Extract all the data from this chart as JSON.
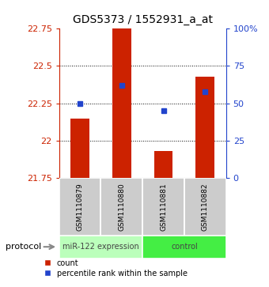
{
  "title": "GDS5373 / 1552931_a_at",
  "samples": [
    "GSM1110879",
    "GSM1110880",
    "GSM1110881",
    "GSM1110882"
  ],
  "groups": [
    "miR-122 expression",
    "miR-122 expression",
    "control",
    "control"
  ],
  "bar_bottoms": [
    21.75,
    21.75,
    21.75,
    21.75
  ],
  "bar_tops": [
    22.15,
    22.75,
    21.93,
    22.43
  ],
  "percentile_values": [
    22.25,
    22.37,
    22.2,
    22.33
  ],
  "ylim_left": [
    21.75,
    22.75
  ],
  "ylim_right": [
    0,
    100
  ],
  "yticks_left": [
    21.75,
    22.0,
    22.25,
    22.5,
    22.75
  ],
  "yticks_right": [
    0,
    25,
    50,
    75,
    100
  ],
  "ytick_labels_left": [
    "21.75",
    "22",
    "22.25",
    "22.5",
    "22.75"
  ],
  "ytick_labels_right": [
    "0",
    "25",
    "50",
    "75",
    "100%"
  ],
  "hlines": [
    22.0,
    22.25,
    22.5
  ],
  "bar_color": "#cc2200",
  "blue_color": "#2244cc",
  "group_colors": {
    "miR-122 expression": "#bbffbb",
    "control": "#44ee44"
  },
  "group_label_color": "#444444",
  "left_tick_color": "#cc2200",
  "right_tick_color": "#2244cc",
  "bar_width": 0.45,
  "legend_red": "count",
  "legend_blue": "percentile rank within the sample",
  "protocol_label": "protocol",
  "figure_bg": "#ffffff",
  "sample_area_bg": "#cccccc",
  "title_fontsize": 10,
  "tick_fontsize": 8,
  "sample_fontsize": 6.5,
  "group_fontsize": 7,
  "legend_fontsize": 7
}
